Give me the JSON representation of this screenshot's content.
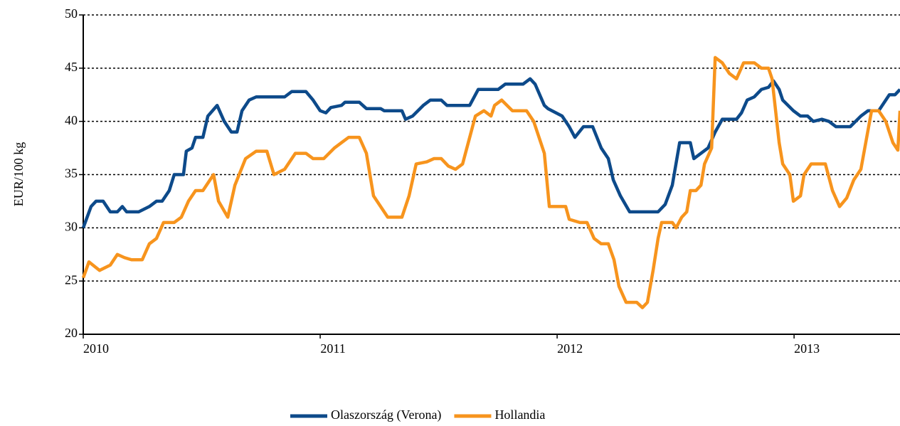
{
  "chart_data": {
    "type": "line",
    "y_label": "EUR/100 kg",
    "xlim": [
      2010,
      2013.447
    ],
    "xticks": [
      2010,
      2011,
      2012,
      2013
    ],
    "ylim": [
      20,
      50
    ],
    "yticks": [
      20,
      25,
      30,
      35,
      40,
      45,
      50
    ],
    "grid": true,
    "legend": "bottom",
    "series": [
      {
        "name": "Olaszország (Verona)",
        "color": "#0d4a8a",
        "x": [
          2010,
          2010.033,
          2010.054,
          2010.084,
          2010.114,
          2010.144,
          2010.165,
          2010.183,
          2010.234,
          2010.279,
          2010.309,
          2010.333,
          2010.363,
          2010.384,
          2010.423,
          2010.435,
          2010.459,
          2010.474,
          2010.505,
          2010.526,
          2010.565,
          2010.595,
          2010.625,
          2010.649,
          2010.67,
          2010.7,
          2010.73,
          2010.85,
          2010.88,
          2010.94,
          2010.97,
          2011,
          2011.024,
          2011.045,
          2011.09,
          2011.105,
          2011.165,
          2011.195,
          2011.255,
          2011.27,
          2011.345,
          2011.36,
          2011.39,
          2011.435,
          2011.465,
          2011.511,
          2011.535,
          2011.631,
          2011.667,
          2011.751,
          2011.781,
          2011.856,
          2011.886,
          2011.907,
          2011.946,
          2011.961,
          2012.021,
          2012.051,
          2012.075,
          2012.111,
          2012.15,
          2012.186,
          2012.216,
          2012.237,
          2012.267,
          2012.306,
          2012.426,
          2012.456,
          2012.486,
          2012.517,
          2012.562,
          2012.577,
          2012.637,
          2012.667,
          2012.697,
          2012.757,
          2012.778,
          2012.802,
          2012.832,
          2012.862,
          2012.892,
          2012.913,
          2012.937,
          2012.952,
          2012.997,
          2013.027,
          2013.057,
          2013.081,
          2013.117,
          2013.147,
          2013.177,
          2013.237,
          2013.282,
          2013.312,
          2013.357,
          2013.402,
          2013.426,
          2013.447
        ],
        "values": [
          30,
          32,
          32.5,
          32.5,
          31.5,
          31.5,
          32,
          31.5,
          31.5,
          32,
          32.5,
          32.5,
          33.5,
          35,
          35,
          37.2,
          37.5,
          38.5,
          38.5,
          40.5,
          41.5,
          40,
          39,
          39,
          41,
          42,
          42.3,
          42.3,
          42.8,
          42.8,
          42,
          41,
          40.8,
          41.3,
          41.5,
          41.8,
          41.8,
          41.2,
          41.2,
          41,
          41,
          40.2,
          40.5,
          41.5,
          42,
          42,
          41.5,
          41.5,
          43,
          43,
          43.5,
          43.5,
          44,
          43.5,
          41.5,
          41.2,
          40.5,
          39.5,
          38.5,
          39.5,
          39.5,
          37.5,
          36.5,
          34.5,
          33,
          31.5,
          31.5,
          32.2,
          34,
          38,
          38,
          36.5,
          37.5,
          39,
          40.2,
          40.2,
          40.8,
          42,
          42.3,
          43,
          43.2,
          43.8,
          43,
          42,
          41,
          40.5,
          40.5,
          40,
          40.2,
          40,
          39.5,
          39.5,
          40.5,
          41,
          41,
          42.5,
          42.5,
          43
        ]
      },
      {
        "name": "Hollandia",
        "color": "#f7941d",
        "x": [
          2010,
          2010.024,
          2010.069,
          2010.114,
          2010.144,
          2010.174,
          2010.204,
          2010.249,
          2010.279,
          2010.309,
          2010.339,
          2010.384,
          2010.414,
          2010.444,
          2010.474,
          2010.505,
          2010.55,
          2010.571,
          2010.61,
          2010.64,
          2010.685,
          2010.73,
          2010.775,
          2010.805,
          2010.85,
          2010.895,
          2010.94,
          2010.97,
          2011.015,
          2011.06,
          2011.09,
          2011.12,
          2011.165,
          2011.195,
          2011.225,
          2011.285,
          2011.345,
          2011.375,
          2011.405,
          2011.45,
          2011.48,
          2011.511,
          2011.541,
          2011.571,
          2011.601,
          2011.631,
          2011.655,
          2011.691,
          2011.721,
          2011.736,
          2011.766,
          2011.811,
          2011.871,
          2011.901,
          2011.931,
          2011.946,
          2011.967,
          2011.991,
          2012.036,
          2012.051,
          2012.096,
          2012.126,
          2012.156,
          2012.186,
          2012.216,
          2012.24,
          2012.261,
          2012.291,
          2012.336,
          2012.36,
          2012.381,
          2012.405,
          2012.426,
          2012.441,
          2012.486,
          2012.502,
          2012.526,
          2012.547,
          2012.562,
          2012.586,
          2012.607,
          2012.622,
          2012.652,
          2012.667,
          2012.697,
          2012.727,
          2012.757,
          2012.787,
          2012.832,
          2012.862,
          2012.892,
          2012.907,
          2012.937,
          2012.952,
          2012.982,
          2012.997,
          2013.027,
          2013.042,
          2013.072,
          2013.117,
          2013.132,
          2013.162,
          2013.192,
          2013.222,
          2013.252,
          2013.282,
          2013.327,
          2013.357,
          2013.387,
          2013.417,
          2013.438,
          2013.447
        ],
        "values": [
          25.3,
          26.8,
          26,
          26.5,
          27.5,
          27.2,
          27,
          27,
          28.5,
          29,
          30.5,
          30.5,
          31,
          32.5,
          33.5,
          33.5,
          35,
          32.5,
          31,
          34,
          36.5,
          37.2,
          37.2,
          35,
          35.5,
          37,
          37,
          36.5,
          36.5,
          37.5,
          38,
          38.5,
          38.5,
          37,
          33,
          31,
          31,
          33,
          36,
          36.2,
          36.5,
          36.5,
          35.8,
          35.5,
          36,
          38.5,
          40.5,
          41,
          40.5,
          41.5,
          42,
          41,
          41,
          40,
          38,
          37,
          32,
          32,
          32,
          30.8,
          30.5,
          30.5,
          29,
          28.5,
          28.5,
          27,
          24.5,
          23,
          23,
          22.5,
          23,
          26,
          29,
          30.5,
          30.5,
          30,
          31,
          31.5,
          33.5,
          33.5,
          34,
          36,
          37.5,
          46,
          45.5,
          44.5,
          44,
          45.5,
          45.5,
          45,
          45,
          44,
          38,
          36,
          35,
          32.5,
          33,
          35,
          36,
          36,
          36,
          33.5,
          32,
          32.8,
          34.5,
          35.5,
          41,
          41,
          40,
          38,
          37.3,
          41
        ]
      }
    ]
  }
}
